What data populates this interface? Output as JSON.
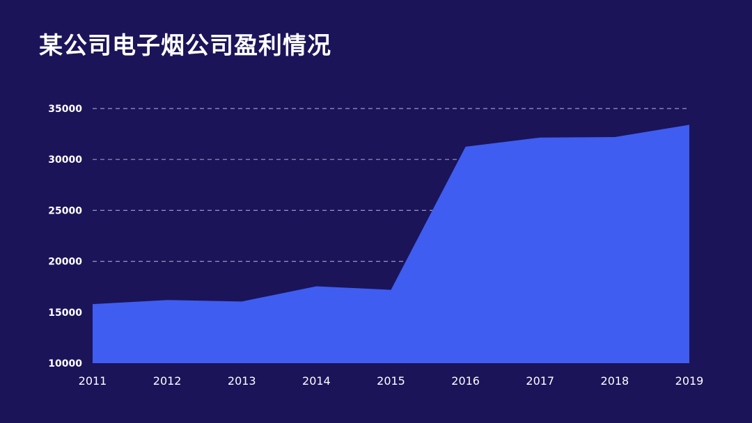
{
  "colors": {
    "background": "#1b1459",
    "area_fill": "#3f5df0",
    "gridline": "#9a98c8",
    "text": "#ffffff"
  },
  "chart_data": {
    "type": "area",
    "title": "某公司电子烟公司盈利情况",
    "xlabel": "",
    "ylabel": "",
    "categories": [
      "2011",
      "2012",
      "2013",
      "2014",
      "2015",
      "2016",
      "2017",
      "2018",
      "2019"
    ],
    "series": [
      {
        "values": [
          15800,
          16200,
          16050,
          17550,
          17200,
          31250,
          32150,
          32200,
          33400
        ]
      }
    ],
    "ylim": [
      10000,
      35000
    ],
    "yticks": [
      10000,
      15000,
      20000,
      25000,
      30000,
      35000
    ],
    "grid": "horizontal dashed",
    "legend": "none"
  }
}
